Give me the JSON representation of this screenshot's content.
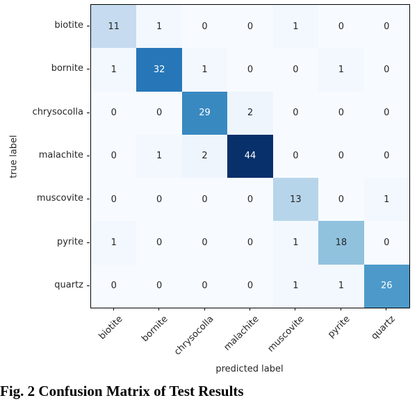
{
  "chart_data": {
    "type": "heatmap",
    "title": "",
    "xlabel": "predicted label",
    "ylabel": "true label",
    "categories": [
      "biotite",
      "bornite",
      "chrysocolla",
      "malachite",
      "muscovite",
      "pyrite",
      "quartz"
    ],
    "matrix": [
      [
        11,
        1,
        0,
        0,
        1,
        0,
        0
      ],
      [
        1,
        32,
        1,
        0,
        0,
        1,
        0
      ],
      [
        0,
        0,
        29,
        2,
        0,
        0,
        0
      ],
      [
        0,
        1,
        2,
        44,
        0,
        0,
        0
      ],
      [
        0,
        0,
        0,
        0,
        13,
        0,
        1
      ],
      [
        1,
        0,
        0,
        0,
        1,
        18,
        0
      ],
      [
        0,
        0,
        0,
        0,
        1,
        1,
        26
      ]
    ],
    "vmin": 0,
    "vmax": 44,
    "colormap": "Blues",
    "colormap_stops": [
      "#f7fbff",
      "#deebf7",
      "#c6dbef",
      "#9ecae1",
      "#6baed6",
      "#4292c6",
      "#2171b5",
      "#08519c",
      "#08306b"
    ],
    "cell_text_dark": "#262626",
    "cell_text_light": "#ffffff",
    "grid": false,
    "legend": "none"
  },
  "caption": "Fig. 2 Confusion Matrix of Test Results"
}
